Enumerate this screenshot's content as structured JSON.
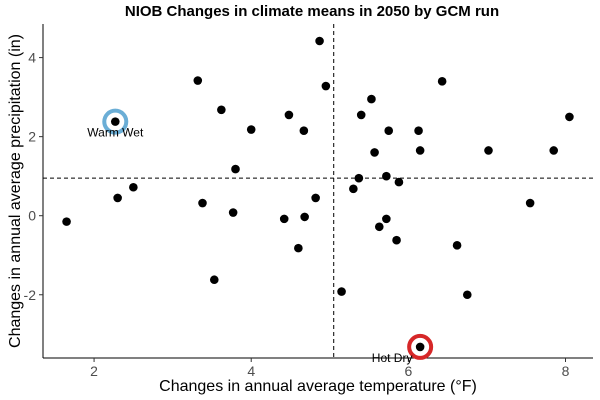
{
  "chart_data": {
    "type": "scatter",
    "title": "NIOB Changes in climate means in 2050 by GCM run",
    "xlabel": "Changes in annual average temperature (°F)",
    "ylabel": "Changes in annual average precipitation (in)",
    "xlim": [
      1.35,
      8.35
    ],
    "ylim": [
      -3.6,
      4.85
    ],
    "xticks": [
      2,
      4,
      6,
      8
    ],
    "yticks": [
      -2,
      0,
      2,
      4
    ],
    "grid": false,
    "reference_lines": {
      "x": 5.05,
      "y": 0.95,
      "style": "dashed"
    },
    "point_color": "#000000",
    "points": [
      {
        "x": 1.65,
        "y": -0.15
      },
      {
        "x": 2.3,
        "y": 0.45
      },
      {
        "x": 2.5,
        "y": 0.72
      },
      {
        "x": 2.27,
        "y": 2.38
      },
      {
        "x": 3.32,
        "y": 3.42
      },
      {
        "x": 3.38,
        "y": 0.32
      },
      {
        "x": 3.53,
        "y": -1.62
      },
      {
        "x": 3.62,
        "y": 2.68
      },
      {
        "x": 3.77,
        "y": 0.08
      },
      {
        "x": 3.8,
        "y": 1.18
      },
      {
        "x": 4.0,
        "y": 2.18
      },
      {
        "x": 4.42,
        "y": -0.08
      },
      {
        "x": 4.48,
        "y": 2.55
      },
      {
        "x": 4.6,
        "y": -0.82
      },
      {
        "x": 4.67,
        "y": 2.15
      },
      {
        "x": 4.68,
        "y": -0.03
      },
      {
        "x": 4.82,
        "y": 0.45
      },
      {
        "x": 4.87,
        "y": 4.42
      },
      {
        "x": 4.95,
        "y": 3.28
      },
      {
        "x": 5.15,
        "y": -1.92
      },
      {
        "x": 5.3,
        "y": 0.68
      },
      {
        "x": 5.37,
        "y": 0.95
      },
      {
        "x": 5.4,
        "y": 2.55
      },
      {
        "x": 5.53,
        "y": 2.95
      },
      {
        "x": 5.57,
        "y": 1.6
      },
      {
        "x": 5.63,
        "y": -0.28
      },
      {
        "x": 5.72,
        "y": -0.08
      },
      {
        "x": 5.72,
        "y": 1.0
      },
      {
        "x": 5.75,
        "y": 2.15
      },
      {
        "x": 5.85,
        "y": -0.62
      },
      {
        "x": 5.88,
        "y": 0.85
      },
      {
        "x": 6.13,
        "y": 2.15
      },
      {
        "x": 6.15,
        "y": 1.65
      },
      {
        "x": 6.15,
        "y": -3.32
      },
      {
        "x": 6.43,
        "y": 3.4
      },
      {
        "x": 6.62,
        "y": -0.75
      },
      {
        "x": 6.75,
        "y": -2.0
      },
      {
        "x": 7.02,
        "y": 1.65
      },
      {
        "x": 7.55,
        "y": 0.32
      },
      {
        "x": 7.85,
        "y": 1.65
      },
      {
        "x": 8.05,
        "y": 2.5
      }
    ],
    "annotations": [
      {
        "label": "Warm Wet",
        "x": 2.27,
        "y": 2.38,
        "ring_color": "#6baed6"
      },
      {
        "label": "Hot Dry",
        "x": 6.15,
        "y": -3.32,
        "ring_color": "#d62728"
      }
    ]
  }
}
